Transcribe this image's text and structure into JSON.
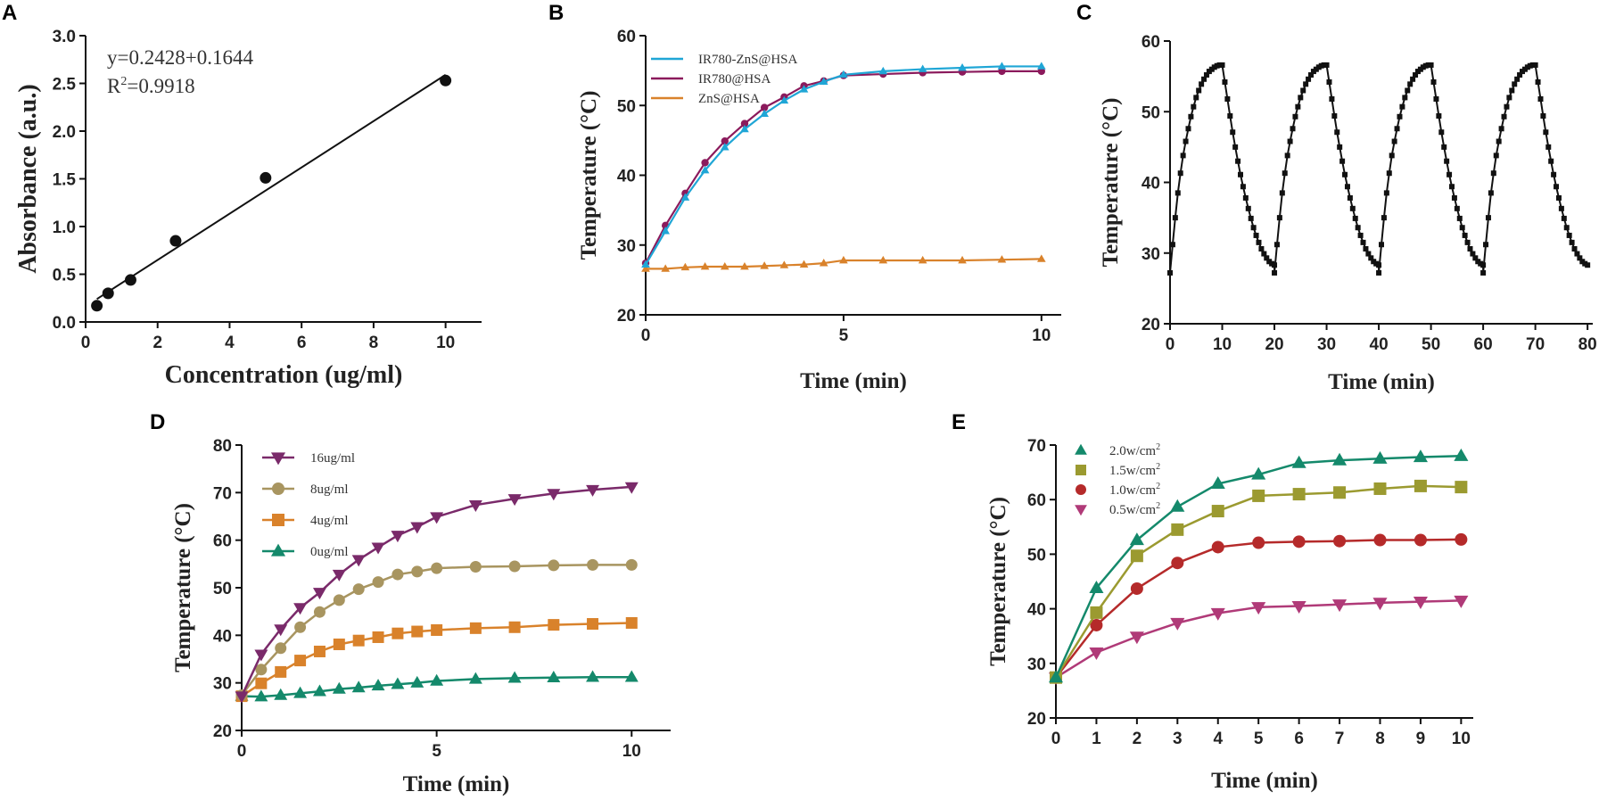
{
  "figure": {
    "panel_labels": [
      "A",
      "B",
      "C",
      "D",
      "E"
    ]
  },
  "chart_data": [
    {
      "panel": "A",
      "type": "scatter",
      "xlabel": "Concentration (ug/ml)",
      "ylabel": "Absorbance (a.u.)",
      "xlim": [
        0,
        11
      ],
      "ylim": [
        0,
        3.0
      ],
      "xticks": [
        "0",
        "2",
        "4",
        "6",
        "8",
        "10"
      ],
      "yticks": [
        "0.0",
        "0.5",
        "1.0",
        "1.5",
        "2.0",
        "2.5",
        "3.0"
      ],
      "x": [
        0.3125,
        0.625,
        1.25,
        2.5,
        5,
        10
      ],
      "y": [
        0.17,
        0.3,
        0.44,
        0.85,
        1.51,
        2.53
      ],
      "fit_line": {
        "x": [
          0.3125,
          10
        ],
        "y": [
          0.24,
          2.59
        ]
      },
      "annotations": {
        "equation": "y=0.2428+0.1644",
        "r2_prefix": "R",
        "r2_sup": "2",
        "r2_suffix": "=0.9918"
      }
    },
    {
      "panel": "B",
      "type": "line",
      "xlabel": "Time (min)",
      "ylabel": "Temperature (°C)",
      "xlim": [
        0,
        10.5
      ],
      "ylim": [
        20,
        60
      ],
      "xticks": [
        "0",
        "5",
        "10"
      ],
      "yticks": [
        "20",
        "30",
        "40",
        "50",
        "60"
      ],
      "series": [
        {
          "name": "IR780-ZnS@HSA",
          "color": "#1fa6d6",
          "marker": "triangle-up",
          "x": [
            0,
            0.5,
            1,
            1.5,
            2,
            2.5,
            3,
            3.5,
            4,
            4.5,
            5,
            6,
            7,
            8,
            9,
            10
          ],
          "y": [
            27.2,
            32.0,
            36.8,
            40.7,
            44.0,
            46.6,
            48.8,
            50.7,
            52.3,
            53.4,
            54.4,
            54.9,
            55.2,
            55.4,
            55.6,
            55.6
          ]
        },
        {
          "name": "IR780@HSA",
          "color": "#8b1a5c",
          "marker": "circle",
          "x": [
            0,
            0.5,
            1,
            1.5,
            2,
            2.5,
            3,
            3.5,
            4,
            4.5,
            5,
            6,
            7,
            8,
            9,
            10
          ],
          "y": [
            27.4,
            32.8,
            37.4,
            41.8,
            44.9,
            47.4,
            49.7,
            51.2,
            52.8,
            53.5,
            54.3,
            54.5,
            54.7,
            54.8,
            54.9,
            54.9
          ]
        },
        {
          "name": "ZnS@HSA",
          "color": "#d9822b",
          "marker": "triangle-up",
          "x": [
            0,
            0.5,
            1,
            1.5,
            2,
            2.5,
            3,
            3.5,
            4,
            4.5,
            5,
            6,
            7,
            8,
            9,
            10
          ],
          "y": [
            26.6,
            26.6,
            26.8,
            26.9,
            26.9,
            26.9,
            27.0,
            27.1,
            27.2,
            27.4,
            27.8,
            27.8,
            27.8,
            27.8,
            27.9,
            28.0
          ]
        }
      ]
    },
    {
      "panel": "C",
      "type": "line",
      "xlabel": "Time (min)",
      "ylabel": "Temperature (°C)",
      "xlim": [
        0,
        81
      ],
      "ylim": [
        20,
        60
      ],
      "xticks": [
        "0",
        "10",
        "20",
        "30",
        "40",
        "50",
        "60",
        "70",
        "80"
      ],
      "yticks": [
        "20",
        "30",
        "40",
        "50",
        "60"
      ],
      "cycle": {
        "heat_x": [
          0,
          0.5,
          1,
          1.5,
          2,
          2.5,
          3,
          3.5,
          4,
          4.5,
          5,
          5.5,
          6,
          6.5,
          7,
          7.5,
          8,
          8.5,
          9,
          9.5,
          10
        ],
        "heat_y": [
          27.2,
          31.2,
          35.0,
          38.5,
          41.3,
          43.8,
          45.8,
          47.6,
          49.3,
          50.7,
          52.0,
          53.0,
          53.9,
          54.6,
          55.2,
          55.7,
          56.0,
          56.3,
          56.5,
          56.6,
          56.6
        ],
        "cool_x": [
          10.5,
          11,
          11.5,
          12,
          12.5,
          13,
          13.5,
          14,
          14.5,
          15,
          15.5,
          16,
          16.5,
          17,
          17.5,
          18,
          18.5,
          19,
          19.5,
          20
        ],
        "cool_y": [
          54.2,
          51.8,
          49.4,
          47.1,
          45.0,
          43.0,
          41.1,
          39.4,
          37.8,
          36.3,
          34.9,
          33.6,
          32.5,
          31.5,
          30.6,
          29.9,
          29.3,
          28.8,
          28.5,
          28.3
        ],
        "repeat": 4,
        "period": 20
      }
    },
    {
      "panel": "D",
      "type": "line",
      "xlabel": "Time (min)",
      "ylabel": "Temperature (°C)",
      "xlim": [
        0,
        11
      ],
      "ylim": [
        20,
        80
      ],
      "xticks": [
        "0",
        "5",
        "10"
      ],
      "yticks": [
        "20",
        "30",
        "40",
        "50",
        "60",
        "70",
        "80"
      ],
      "series": [
        {
          "name": "16ug/ml",
          "color": "#7a2a6a",
          "marker": "triangle-down",
          "x": [
            0,
            0.5,
            1,
            1.5,
            2,
            2.5,
            3,
            3.5,
            4,
            4.5,
            5,
            6,
            7,
            8,
            9,
            10
          ],
          "y": [
            27.2,
            36.0,
            41.3,
            45.8,
            49.0,
            52.8,
            55.9,
            58.5,
            61.0,
            62.8,
            64.9,
            67.4,
            68.7,
            69.8,
            70.6,
            71.2
          ]
        },
        {
          "name": "8ug/ml",
          "color": "#a89560",
          "marker": "circle",
          "x": [
            0,
            0.5,
            1,
            1.5,
            2,
            2.5,
            3,
            3.5,
            4,
            4.5,
            5,
            6,
            7,
            8,
            9,
            10
          ],
          "y": [
            27.4,
            32.8,
            37.3,
            41.7,
            44.9,
            47.4,
            49.7,
            51.2,
            52.8,
            53.4,
            54.1,
            54.4,
            54.5,
            54.7,
            54.8,
            54.8
          ]
        },
        {
          "name": "4ug/ml",
          "color": "#d9822b",
          "marker": "square",
          "x": [
            0,
            0.5,
            1,
            1.5,
            2,
            2.5,
            3,
            3.5,
            4,
            4.5,
            5,
            6,
            7,
            8,
            9,
            10
          ],
          "y": [
            27.2,
            29.9,
            32.3,
            34.7,
            36.6,
            38.1,
            38.9,
            39.6,
            40.4,
            40.8,
            41.1,
            41.5,
            41.7,
            42.2,
            42.4,
            42.6
          ]
        },
        {
          "name": "0ug/ml",
          "color": "#14896b",
          "marker": "triangle-up",
          "x": [
            0,
            0.5,
            1,
            1.5,
            2,
            2.5,
            3,
            3.5,
            4,
            4.5,
            5,
            6,
            7,
            8,
            9,
            10
          ],
          "y": [
            27.2,
            27.1,
            27.4,
            27.8,
            28.2,
            28.7,
            29.0,
            29.4,
            29.7,
            30.0,
            30.4,
            30.8,
            31.0,
            31.1,
            31.2,
            31.2
          ]
        }
      ]
    },
    {
      "panel": "E",
      "type": "line",
      "xlabel": "Time (min)",
      "ylabel": "Temperature (°C)",
      "xlim": [
        0,
        10.3
      ],
      "ylim": [
        20,
        70
      ],
      "xticks": [
        "0",
        "1",
        "2",
        "3",
        "4",
        "5",
        "6",
        "7",
        "8",
        "9",
        "10"
      ],
      "yticks": [
        "20",
        "30",
        "40",
        "50",
        "60",
        "70"
      ],
      "series": [
        {
          "name": "2.0w/cm",
          "sup": "2",
          "color": "#14896b",
          "marker": "triangle-up",
          "x": [
            0,
            1,
            2,
            3,
            4,
            5,
            6,
            7,
            8,
            9,
            10
          ],
          "y": [
            27.4,
            43.8,
            52.6,
            58.7,
            62.9,
            64.6,
            66.7,
            67.2,
            67.5,
            67.8,
            68.0
          ]
        },
        {
          "name": "1.5w/cm",
          "sup": "2",
          "color": "#9b9a30",
          "marker": "square",
          "x": [
            0,
            1,
            2,
            3,
            4,
            5,
            6,
            7,
            8,
            9,
            10
          ],
          "y": [
            27.4,
            39.3,
            49.7,
            54.5,
            57.9,
            60.7,
            61.0,
            61.3,
            62.0,
            62.5,
            62.3
          ]
        },
        {
          "name": "1.0w/cm",
          "sup": "2",
          "color": "#b52a2a",
          "marker": "circle",
          "x": [
            0,
            1,
            2,
            3,
            4,
            5,
            6,
            7,
            8,
            9,
            10
          ],
          "y": [
            27.4,
            37.0,
            43.7,
            48.4,
            51.3,
            52.1,
            52.3,
            52.4,
            52.6,
            52.6,
            52.7
          ]
        },
        {
          "name": "0.5w/cm",
          "sup": "2",
          "color": "#b03a78",
          "marker": "triangle-down",
          "x": [
            0,
            1,
            2,
            3,
            4,
            5,
            6,
            7,
            8,
            9,
            10
          ],
          "y": [
            27.4,
            32.0,
            34.9,
            37.4,
            39.2,
            40.3,
            40.5,
            40.8,
            41.1,
            41.3,
            41.5
          ]
        }
      ]
    }
  ]
}
